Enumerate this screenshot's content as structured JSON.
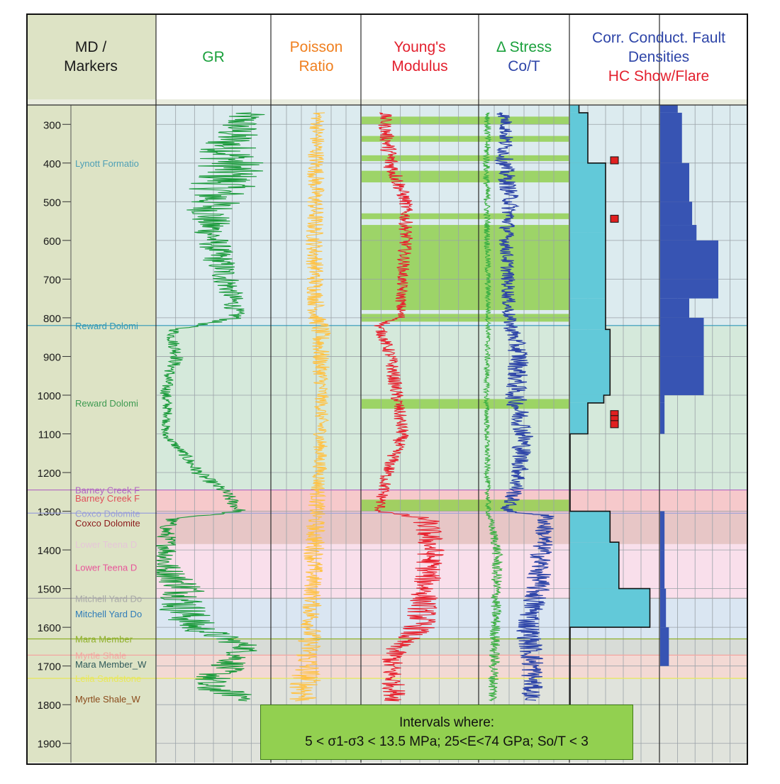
{
  "headers": {
    "md_markers": [
      "MD /",
      "Markers"
    ],
    "gr": [
      "GR"
    ],
    "poisson": [
      "Poisson",
      "Ratio"
    ],
    "youngs": [
      "Young's",
      "Modulus"
    ],
    "stress": [
      "Δ Stress",
      "Co/T"
    ],
    "fault": [
      "Corr. Conduct. Fault",
      "Densities"
    ],
    "hc": [
      "HC Show/Flare"
    ]
  },
  "colors": {
    "header_bg": "#dde3c5",
    "marker_col_bg": "#dde3c5",
    "gr": "#1a9a3a",
    "poisson": "#ffc244",
    "youngs": "#e8202e",
    "stress_co": "#2e45a8",
    "stress_t": "#3cb043",
    "highlight": "#92d050",
    "conductivity_fill": "#62c9d9",
    "fault_density": "#3754b3",
    "hc_show": "#e02020",
    "zone_blue": "#dcebef",
    "zone_green": "#d5e9db",
    "zone_red": "#f6c9cb",
    "zone_pink": "#f9dfeb",
    "zone_lightblue": "#dae6f2",
    "zone_grey": "#e0e3dc"
  },
  "legend": {
    "line1": "Intervals where:",
    "line2": "5 < σ1-σ3 < 13.5 MPa; 25<E<74 GPa; So/T < 3"
  },
  "chart_data": {
    "type": "line",
    "title": "",
    "xlabel": "",
    "ylabel": "MD",
    "ylim": [
      250,
      1950
    ],
    "y_ticks": [
      300,
      400,
      500,
      600,
      700,
      800,
      900,
      1000,
      1100,
      1200,
      1300,
      1400,
      1500,
      1600,
      1700,
      1800,
      1900
    ],
    "grid": true,
    "markers": [
      {
        "label": "Lynott Formatio",
        "depth": 400,
        "color": "#4e9fb5",
        "line": false
      },
      {
        "label": "Reward Dolomi",
        "depth": 820,
        "color": "#2f98b8",
        "line": true
      },
      {
        "label": "Reward Dolomi",
        "depth": 1020,
        "color": "#3d9a50",
        "line": false
      },
      {
        "label": "Barney Creek F",
        "depth": 1245,
        "color": "#b267c2",
        "line": true
      },
      {
        "label": "Barney Creek F",
        "depth": 1266,
        "color": "#e0505a",
        "line": false
      },
      {
        "label": "Coxco Dolomite",
        "depth": 1305,
        "color": "#9aa0d8",
        "line": true
      },
      {
        "label": "Coxco Dolomite",
        "depth": 1330,
        "color": "#8b1a1a",
        "line": false
      },
      {
        "label": "Lower Teena D",
        "depth": 1385,
        "color": "#e6c6d8",
        "line": false
      },
      {
        "label": "Lower Teena D",
        "depth": 1445,
        "color": "#e8559a",
        "line": false
      },
      {
        "label": "Mitchell Yard Do",
        "depth": 1525,
        "color": "#a8a8a8",
        "line": true
      },
      {
        "label": "Mitchell Yard Do",
        "depth": 1565,
        "color": "#2f7cb8",
        "line": false
      },
      {
        "label": "Mara Member",
        "depth": 1630,
        "color": "#8fb02a",
        "line": true
      },
      {
        "label": "Myrtle Shale",
        "depth": 1672,
        "color": "#f3a6a0",
        "line": true
      },
      {
        "label": "Mara Member_W",
        "depth": 1695,
        "color": "#2f5a5a",
        "line": false
      },
      {
        "label": "Leila Sandstone",
        "depth": 1732,
        "color": "#e8e85a",
        "line": true
      },
      {
        "label": "Myrtle Shale_W",
        "depth": 1785,
        "color": "#8a4a1a",
        "line": false
      }
    ],
    "zones": [
      {
        "from": 250,
        "to": 820,
        "color": "#dcebef"
      },
      {
        "from": 820,
        "to": 1245,
        "color": "#d5e9db"
      },
      {
        "from": 1245,
        "to": 1305,
        "color": "#f6c9cb"
      },
      {
        "from": 1305,
        "to": 1385,
        "color": "#e7c6c6"
      },
      {
        "from": 1385,
        "to": 1525,
        "color": "#f9dfeb"
      },
      {
        "from": 1525,
        "to": 1630,
        "color": "#dae6f2"
      },
      {
        "from": 1630,
        "to": 1672,
        "color": "#d8dcd7"
      },
      {
        "from": 1672,
        "to": 1732,
        "color": "#f3d9d4"
      },
      {
        "from": 1732,
        "to": 1950,
        "color": "#e0e3dc"
      }
    ],
    "highlight_intervals": [
      [
        280,
        300
      ],
      [
        330,
        345
      ],
      [
        380,
        395
      ],
      [
        420,
        450
      ],
      [
        530,
        545
      ],
      [
        560,
        780
      ],
      [
        790,
        810
      ],
      [
        1010,
        1035
      ],
      [
        1270,
        1300
      ]
    ],
    "series": [
      {
        "name": "GR",
        "scale": [
          0,
          150
        ],
        "depths": [
          250,
          300,
          350,
          400,
          450,
          500,
          550,
          600,
          650,
          700,
          750,
          800,
          830,
          850,
          900,
          950,
          1000,
          1050,
          1100,
          1150,
          1200,
          1250,
          1300,
          1320,
          1350,
          1400,
          1450,
          1500,
          1550,
          1600,
          1650,
          1700,
          1750,
          1800
        ],
        "values": [
          120,
          110,
          95,
          100,
          90,
          75,
          70,
          75,
          82,
          92,
          100,
          105,
          25,
          20,
          28,
          15,
          12,
          15,
          10,
          35,
          55,
          90,
          110,
          20,
          12,
          15,
          10,
          40,
          35,
          50,
          120,
          95,
          60,
          150
        ],
        "amplitude": [
          28,
          28,
          38,
          45,
          45,
          38,
          28,
          22,
          22,
          20,
          15,
          12,
          8,
          8,
          10,
          8,
          8,
          6,
          6,
          8,
          10,
          10,
          10,
          10,
          12,
          15,
          25,
          30,
          35,
          30,
          20,
          25,
          30,
          20
        ]
      },
      {
        "name": "Poisson Ratio",
        "scale": [
          0,
          0.5
        ],
        "depths": [
          250,
          400,
          600,
          800,
          820,
          1000,
          1200,
          1300,
          1400,
          1500,
          1600,
          1700,
          1800
        ],
        "values": [
          0.26,
          0.25,
          0.24,
          0.25,
          0.27,
          0.28,
          0.27,
          0.25,
          0.24,
          0.23,
          0.22,
          0.2,
          0.18
        ],
        "amplitude": [
          0.04,
          0.05,
          0.05,
          0.05,
          0.06,
          0.04,
          0.04,
          0.05,
          0.06,
          0.05,
          0.06,
          0.08,
          0.1
        ]
      },
      {
        "name": "Young's Modulus",
        "scale": [
          0,
          100
        ],
        "depths": [
          250,
          300,
          400,
          500,
          600,
          700,
          800,
          820,
          900,
          1000,
          1100,
          1200,
          1300,
          1320,
          1400,
          1500,
          1600,
          1650,
          1700,
          1800
        ],
        "values": [
          20,
          20,
          25,
          38,
          38,
          35,
          33,
          15,
          25,
          30,
          35,
          22,
          15,
          55,
          60,
          55,
          50,
          30,
          25,
          30
        ],
        "amplitude": [
          6,
          6,
          8,
          6,
          6,
          5,
          5,
          5,
          6,
          6,
          6,
          6,
          5,
          12,
          12,
          12,
          14,
          10,
          10,
          10
        ]
      },
      {
        "name": "Co",
        "scale": [
          0,
          100
        ],
        "depths": [
          250,
          300,
          400,
          500,
          600,
          700,
          800,
          900,
          1000,
          1100,
          1200,
          1250,
          1300,
          1310,
          1400,
          1500,
          1600,
          1700,
          1800
        ],
        "values": [
          25,
          30,
          28,
          35,
          30,
          32,
          33,
          45,
          40,
          50,
          45,
          40,
          30,
          75,
          70,
          65,
          55,
          60,
          58
        ],
        "amplitude": [
          8,
          8,
          10,
          10,
          8,
          8,
          8,
          12,
          12,
          12,
          10,
          10,
          8,
          10,
          12,
          14,
          14,
          14,
          10
        ]
      },
      {
        "name": "T",
        "scale": [
          0,
          100
        ],
        "depths": [
          250,
          400,
          800,
          1000,
          1200,
          1300,
          1400,
          1600,
          1800
        ],
        "values": [
          10,
          8,
          10,
          8,
          9,
          10,
          20,
          18,
          15
        ],
        "amplitude": [
          4,
          4,
          3,
          3,
          3,
          3,
          6,
          6,
          6
        ]
      }
    ],
    "conductivity_steps": [
      [
        250,
        270,
        10
      ],
      [
        270,
        400,
        20
      ],
      [
        400,
        580,
        40
      ],
      [
        580,
        750,
        40
      ],
      [
        750,
        830,
        40
      ],
      [
        830,
        890,
        45
      ],
      [
        890,
        1000,
        45
      ],
      [
        1000,
        1020,
        38
      ],
      [
        1020,
        1100,
        20
      ],
      [
        1100,
        1230,
        0
      ],
      [
        1230,
        1300,
        0
      ],
      [
        1300,
        1380,
        45
      ],
      [
        1380,
        1500,
        55
      ],
      [
        1500,
        1600,
        90
      ],
      [
        1600,
        1800,
        0
      ]
    ],
    "conductivity_outline": [
      [
        250,
        270,
        10
      ],
      [
        270,
        400,
        20
      ],
      [
        400,
        580,
        20
      ],
      [
        580,
        830,
        20
      ],
      [
        830,
        890,
        45
      ],
      [
        890,
        1000,
        25
      ],
      [
        1000,
        1100,
        18
      ],
      [
        1100,
        1230,
        0
      ]
    ],
    "hc_show_depths": [
      393,
      544,
      1049,
      1062,
      1075
    ],
    "fault_density": {
      "scale": [
        0,
        6
      ],
      "depths": [
        250,
        270,
        400,
        500,
        560,
        600,
        700,
        750,
        800,
        900,
        1000,
        1020,
        1100,
        1300,
        1400,
        1500,
        1600,
        1700
      ],
      "values": [
        1.2,
        1.5,
        2.0,
        2.2,
        2.5,
        4.0,
        4.0,
        2.0,
        3.0,
        3.0,
        0.3,
        0.3,
        0,
        0.3,
        0.3,
        0.4,
        0.6,
        0.4
      ]
    }
  }
}
